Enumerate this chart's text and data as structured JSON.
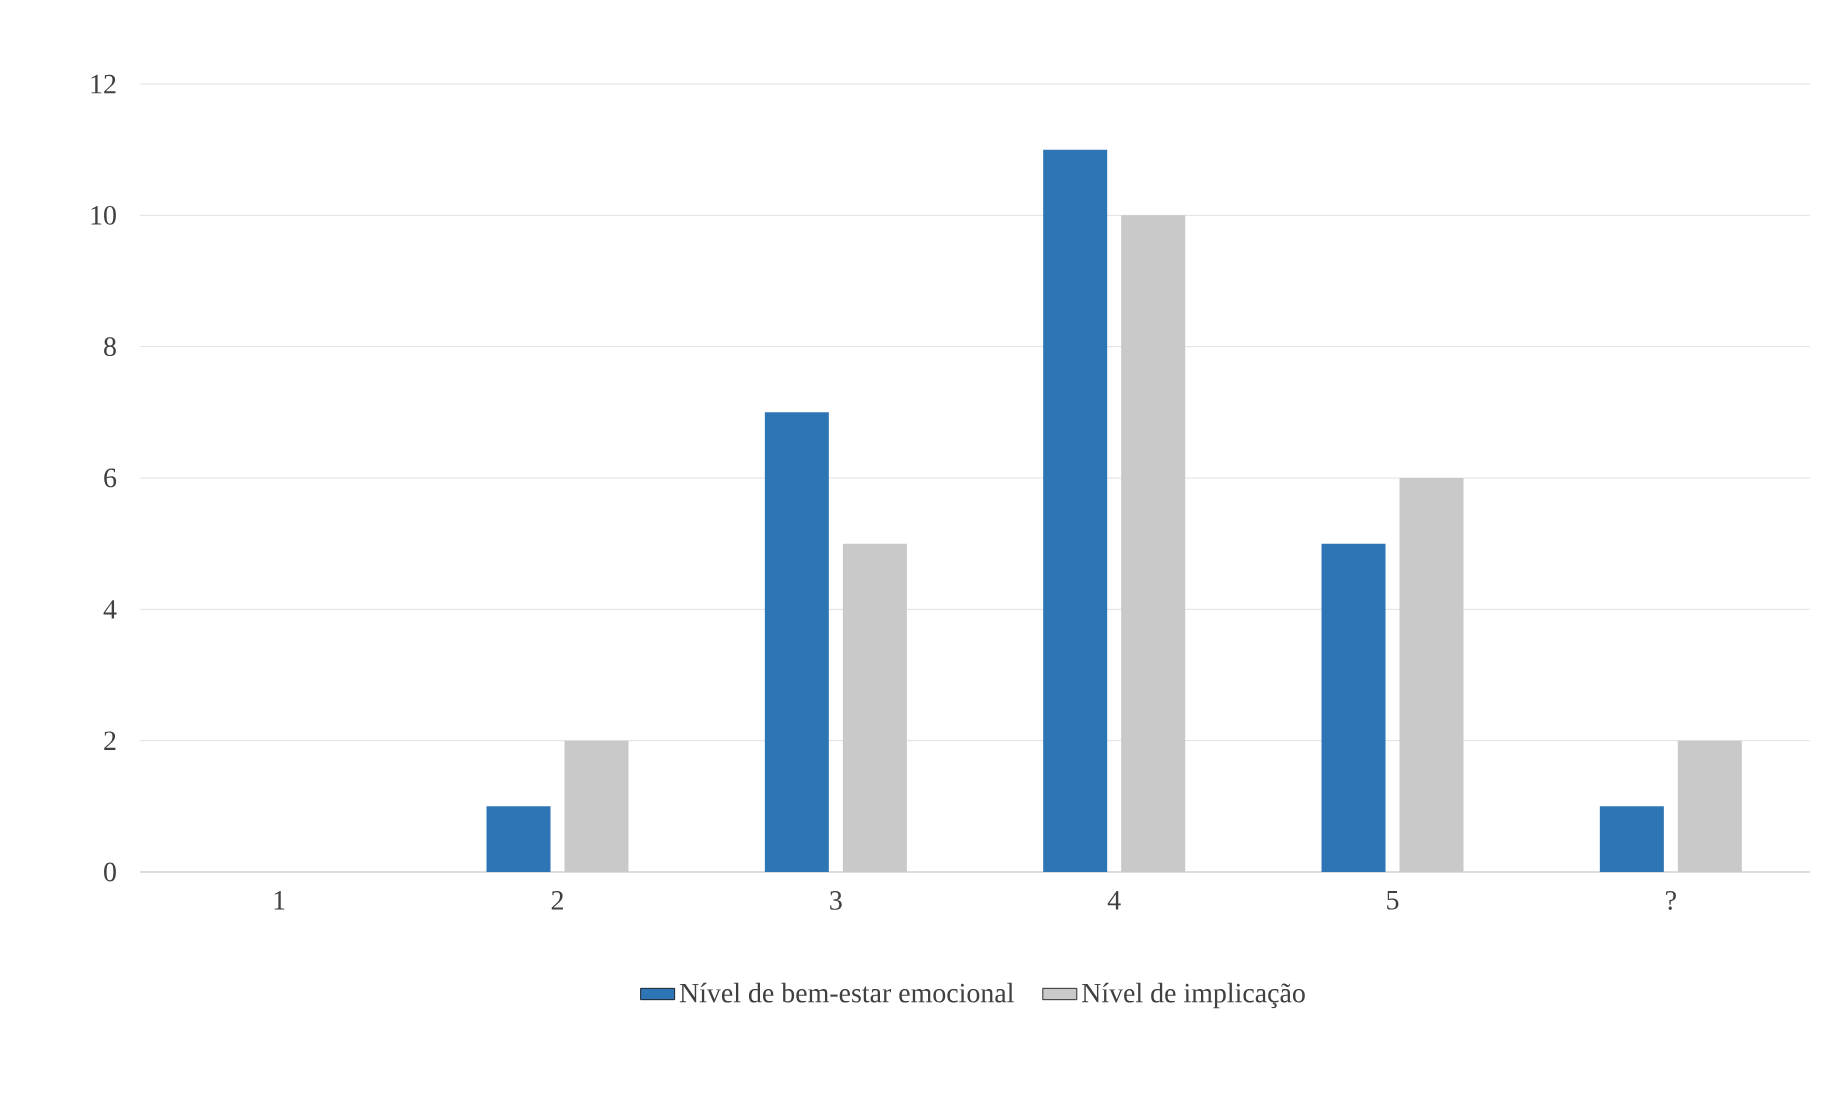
{
  "chart_data": {
    "type": "bar",
    "categories": [
      "1",
      "2",
      "3",
      "4",
      "5",
      "?"
    ],
    "series": [
      {
        "name": "Nível de bem-estar emocional",
        "color": "#2e75b6",
        "values": [
          0,
          1,
          7,
          11,
          5,
          1
        ]
      },
      {
        "name": "Nível de implicação",
        "color": "#c9c9c9",
        "values": [
          0,
          2,
          5,
          10,
          6,
          2
        ]
      }
    ],
    "ylim": [
      0,
      12
    ],
    "yticks": [
      0,
      2,
      4,
      6,
      8,
      10,
      12
    ],
    "grid": "y",
    "legend": "bottom"
  }
}
